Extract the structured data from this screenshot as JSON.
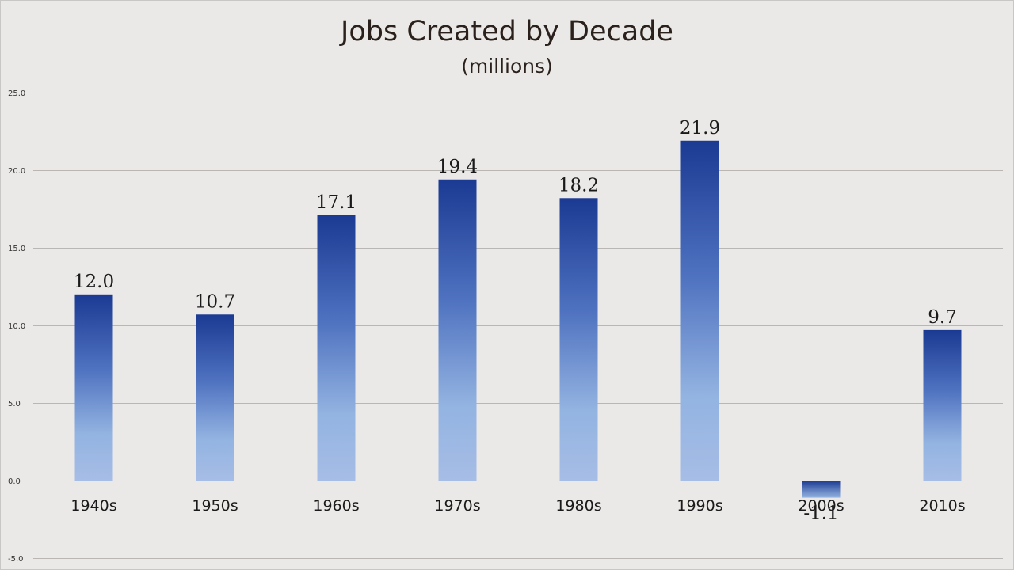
{
  "chart_data": {
    "type": "bar",
    "title": "Jobs Created by Decade",
    "subtitle": "(millions)",
    "xlabel": "",
    "ylabel": "",
    "categories": [
      "1940s",
      "1950s",
      "1960s",
      "1970s",
      "1980s",
      "1990s",
      "2000s",
      "2010s"
    ],
    "values": [
      12.0,
      10.7,
      17.1,
      19.4,
      18.2,
      21.9,
      -1.1,
      9.7
    ],
    "data_labels": [
      "12.0",
      "10.7",
      "17.1",
      "19.4",
      "18.2",
      "21.9",
      "-1.1",
      "9.7"
    ],
    "ylim": [
      -5,
      25
    ],
    "yticks": [
      -5,
      0,
      5,
      10,
      15,
      20,
      25
    ],
    "ytick_labels": [
      "-5.0",
      "0.0",
      "5.0",
      "10.0",
      "15.0",
      "20.0",
      "25.0"
    ],
    "grid": true,
    "legend": "none",
    "colors": {
      "background": "#ebe9e7",
      "bar_top": "#1b3a93",
      "bar_mid": "#4f72c0",
      "bar_light": "#93b3e1",
      "bar_bottom": "#a6bde6",
      "gridline": "#b9b6b3",
      "title_text": "#2b211c"
    }
  }
}
